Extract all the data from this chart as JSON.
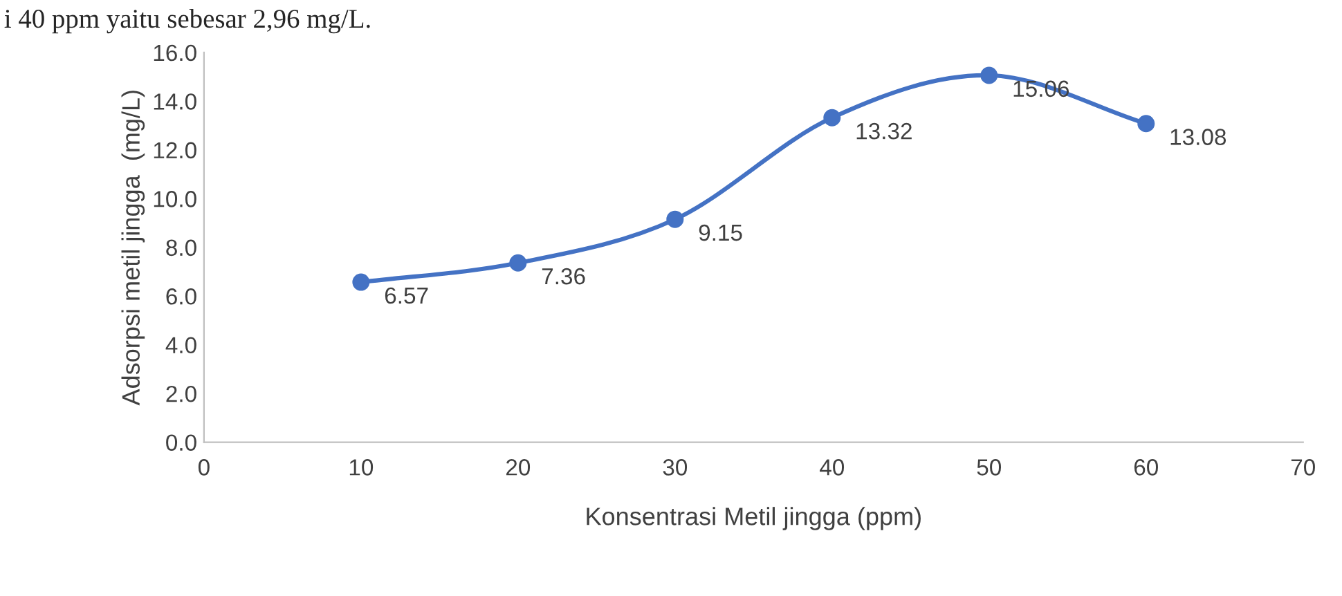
{
  "chart_data": {
    "type": "line",
    "xlabel": "Konsentrasi Metil jingga (ppm)",
    "ylabel": "Adsorpsi metil jingga  (mg/L)",
    "annotations": [
      "i 40 ppm yaitu sebesar 2,96 mg/L."
    ],
    "x": [
      10,
      20,
      30,
      40,
      50,
      60
    ],
    "series": [
      {
        "color": "#4472c4",
        "values": [
          6.57,
          7.36,
          9.15,
          13.32,
          15.06,
          13.08
        ]
      }
    ],
    "xlim": [
      0,
      70
    ],
    "xticks": [
      0,
      10,
      20,
      30,
      40,
      50,
      60,
      70
    ],
    "ylim": [
      0,
      16
    ],
    "yticks": [
      {
        "value": 0,
        "label": "0.0"
      },
      {
        "value": 2,
        "label": "2.0"
      },
      {
        "value": 4,
        "label": "4.0"
      },
      {
        "value": 6,
        "label": "6.0"
      },
      {
        "value": 8,
        "label": "8.0"
      },
      {
        "value": 10,
        "label": "10.0"
      },
      {
        "value": 12,
        "label": "12.0"
      },
      {
        "value": 14,
        "label": "14.0"
      },
      {
        "value": 16,
        "label": "16.0"
      }
    ],
    "data_labels": true,
    "marker": "circle",
    "line_style": "solid",
    "grid": false,
    "legend": false
  }
}
